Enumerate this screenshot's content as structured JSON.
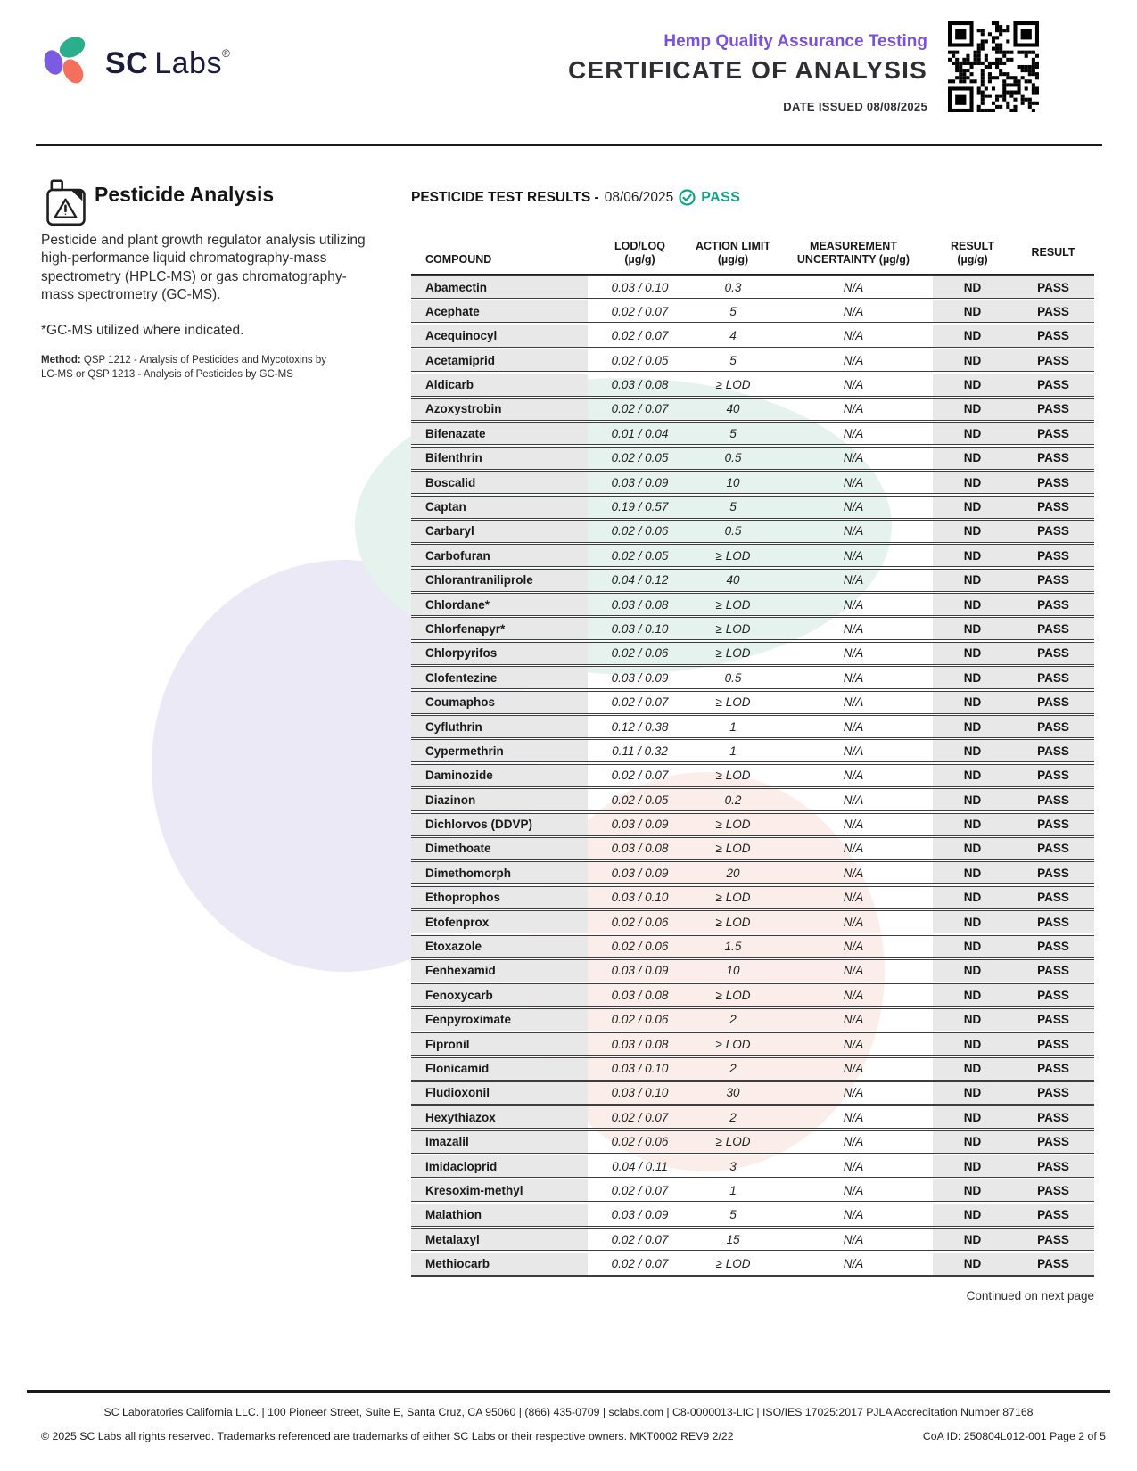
{
  "header": {
    "brand_sc": "SC",
    "brand_labs": "Labs",
    "registered_mark": "®",
    "program_title": "Hemp Quality Assurance Testing",
    "document_title": "CERTIFICATE OF ANALYSIS",
    "date_issued": "DATE ISSUED 08/08/2025"
  },
  "section": {
    "title": "Pesticide Analysis",
    "description": "Pesticide and plant growth regulator analysis utilizing high-performance liquid chromatography-mass spectrometry (HPLC-MS) or gas chromatography-mass spectrometry (GC-MS).",
    "note": "*GC-MS utilized where indicated.",
    "method_label": "Method:",
    "method_text": " QSP 1212 - Analysis of Pesticides and Mycotoxins by LC-MS or QSP 1213 - Analysis of Pesticides by GC-MS"
  },
  "results_header": {
    "label": "PESTICIDE TEST RESULTS -",
    "date": "08/06/2025",
    "status": "PASS"
  },
  "table": {
    "columns": [
      {
        "line1": "COMPOUND",
        "line2": ""
      },
      {
        "line1": "LOD/LOQ",
        "line2": "(µg/g)"
      },
      {
        "line1": "ACTION LIMIT",
        "line2": "(µg/g)"
      },
      {
        "line1": "MEASUREMENT",
        "line2": "UNCERTAINTY (µg/g)"
      },
      {
        "line1": "RESULT",
        "line2": "(µg/g)"
      },
      {
        "line1": "RESULT",
        "line2": ""
      }
    ],
    "rows": [
      [
        "Abamectin",
        "0.03 / 0.10",
        "0.3",
        "N/A",
        "ND",
        "PASS"
      ],
      [
        "Acephate",
        "0.02 / 0.07",
        "5",
        "N/A",
        "ND",
        "PASS"
      ],
      [
        "Acequinocyl",
        "0.02 / 0.07",
        "4",
        "N/A",
        "ND",
        "PASS"
      ],
      [
        "Acetamiprid",
        "0.02 / 0.05",
        "5",
        "N/A",
        "ND",
        "PASS"
      ],
      [
        "Aldicarb",
        "0.03 / 0.08",
        "≥ LOD",
        "N/A",
        "ND",
        "PASS"
      ],
      [
        "Azoxystrobin",
        "0.02 / 0.07",
        "40",
        "N/A",
        "ND",
        "PASS"
      ],
      [
        "Bifenazate",
        "0.01 / 0.04",
        "5",
        "N/A",
        "ND",
        "PASS"
      ],
      [
        "Bifenthrin",
        "0.02 / 0.05",
        "0.5",
        "N/A",
        "ND",
        "PASS"
      ],
      [
        "Boscalid",
        "0.03 / 0.09",
        "10",
        "N/A",
        "ND",
        "PASS"
      ],
      [
        "Captan",
        "0.19 / 0.57",
        "5",
        "N/A",
        "ND",
        "PASS"
      ],
      [
        "Carbaryl",
        "0.02 / 0.06",
        "0.5",
        "N/A",
        "ND",
        "PASS"
      ],
      [
        "Carbofuran",
        "0.02 / 0.05",
        "≥ LOD",
        "N/A",
        "ND",
        "PASS"
      ],
      [
        "Chlorantraniliprole",
        "0.04 / 0.12",
        "40",
        "N/A",
        "ND",
        "PASS"
      ],
      [
        "Chlordane*",
        "0.03 / 0.08",
        "≥ LOD",
        "N/A",
        "ND",
        "PASS"
      ],
      [
        "Chlorfenapyr*",
        "0.03 / 0.10",
        "≥ LOD",
        "N/A",
        "ND",
        "PASS"
      ],
      [
        "Chlorpyrifos",
        "0.02 / 0.06",
        "≥ LOD",
        "N/A",
        "ND",
        "PASS"
      ],
      [
        "Clofentezine",
        "0.03 / 0.09",
        "0.5",
        "N/A",
        "ND",
        "PASS"
      ],
      [
        "Coumaphos",
        "0.02 / 0.07",
        "≥ LOD",
        "N/A",
        "ND",
        "PASS"
      ],
      [
        "Cyfluthrin",
        "0.12 / 0.38",
        "1",
        "N/A",
        "ND",
        "PASS"
      ],
      [
        "Cypermethrin",
        "0.11 / 0.32",
        "1",
        "N/A",
        "ND",
        "PASS"
      ],
      [
        "Daminozide",
        "0.02 / 0.07",
        "≥ LOD",
        "N/A",
        "ND",
        "PASS"
      ],
      [
        "Diazinon",
        "0.02 / 0.05",
        "0.2",
        "N/A",
        "ND",
        "PASS"
      ],
      [
        "Dichlorvos (DDVP)",
        "0.03 / 0.09",
        "≥ LOD",
        "N/A",
        "ND",
        "PASS"
      ],
      [
        "Dimethoate",
        "0.03 / 0.08",
        "≥ LOD",
        "N/A",
        "ND",
        "PASS"
      ],
      [
        "Dimethomorph",
        "0.03 / 0.09",
        "20",
        "N/A",
        "ND",
        "PASS"
      ],
      [
        "Ethoprophos",
        "0.03 / 0.10",
        "≥ LOD",
        "N/A",
        "ND",
        "PASS"
      ],
      [
        "Etofenprox",
        "0.02 / 0.06",
        "≥ LOD",
        "N/A",
        "ND",
        "PASS"
      ],
      [
        "Etoxazole",
        "0.02 / 0.06",
        "1.5",
        "N/A",
        "ND",
        "PASS"
      ],
      [
        "Fenhexamid",
        "0.03 / 0.09",
        "10",
        "N/A",
        "ND",
        "PASS"
      ],
      [
        "Fenoxycarb",
        "0.03 / 0.08",
        "≥ LOD",
        "N/A",
        "ND",
        "PASS"
      ],
      [
        "Fenpyroximate",
        "0.02 / 0.06",
        "2",
        "N/A",
        "ND",
        "PASS"
      ],
      [
        "Fipronil",
        "0.03 / 0.08",
        "≥ LOD",
        "N/A",
        "ND",
        "PASS"
      ],
      [
        "Flonicamid",
        "0.03 / 0.10",
        "2",
        "N/A",
        "ND",
        "PASS"
      ],
      [
        "Fludioxonil",
        "0.03 / 0.10",
        "30",
        "N/A",
        "ND",
        "PASS"
      ],
      [
        "Hexythiazox",
        "0.02 / 0.07",
        "2",
        "N/A",
        "ND",
        "PASS"
      ],
      [
        "Imazalil",
        "0.02 / 0.06",
        "≥ LOD",
        "N/A",
        "ND",
        "PASS"
      ],
      [
        "Imidacloprid",
        "0.04 / 0.11",
        "3",
        "N/A",
        "ND",
        "PASS"
      ],
      [
        "Kresoxim-methyl",
        "0.02 / 0.07",
        "1",
        "N/A",
        "ND",
        "PASS"
      ],
      [
        "Malathion",
        "0.03 / 0.09",
        "5",
        "N/A",
        "ND",
        "PASS"
      ],
      [
        "Metalaxyl",
        "0.02 / 0.07",
        "15",
        "N/A",
        "ND",
        "PASS"
      ],
      [
        "Methiocarb",
        "0.02 / 0.07",
        "≥ LOD",
        "N/A",
        "ND",
        "PASS"
      ]
    ]
  },
  "continued_note": "Continued on next page",
  "footer": {
    "line1": "SC Laboratories California LLC. | 100 Pioneer Street, Suite E, Santa Cruz, CA 95060 | (866) 435-0709 | sclabs.com | C8-0000013-LIC | ISO/IES 17025:2017 PJLA Accreditation Number 87168",
    "line2_left": "© 2025 SC Labs all rights reserved. Trademarks referenced are trademarks of either SC Labs or their respective owners. MKT0002 REV9 2/22",
    "line2_right": "CoA ID: 250804L012-001  Page 2 of 5"
  },
  "colors": {
    "brand_purple": "#7C5BE4",
    "brand_green": "#2BAE8C",
    "brand_coral": "#F4705C",
    "accent_purple": "#7A52D9",
    "pass_teal": "#13A287",
    "table_gray": "#E8E8E8"
  }
}
